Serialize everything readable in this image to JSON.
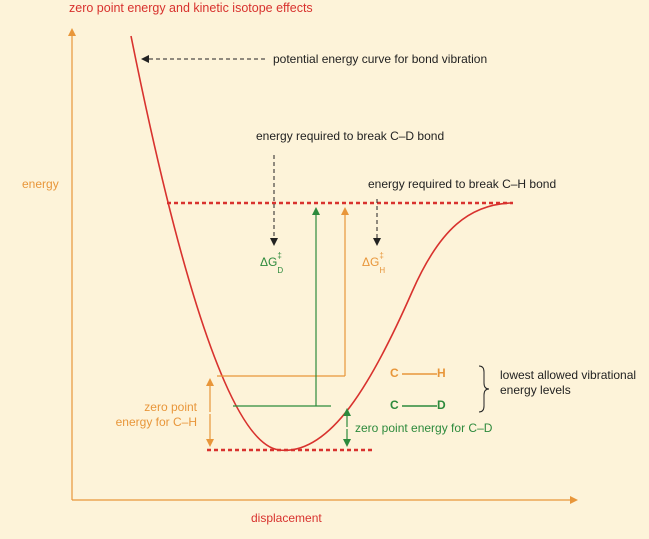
{
  "title": "zero point energy and kinetic isotope effects",
  "labels": {
    "potential_curve": "potential energy curve for bond vibration",
    "energy_cd": "energy required to break C–D bond",
    "energy_ch": "energy required to break C–H bond",
    "y_axis": "energy",
    "x_axis": "displacement",
    "zpe_ch_line1": "zero point",
    "zpe_ch_line2": "energy for C–H",
    "zpe_cd": "zero point energy for C–D",
    "lowest_levels_line1": "lowest allowed vibrational",
    "lowest_levels_line2": "energy levels",
    "dg_d": {
      "base": "ΔG",
      "sup": "‡",
      "sub": "D"
    },
    "dg_h": {
      "base": "ΔG",
      "sup": "‡",
      "sub": "H"
    }
  },
  "bonds": {
    "ch": {
      "left": "C",
      "right": "H"
    },
    "cd": {
      "left": "C",
      "right": "D"
    }
  },
  "colors": {
    "background": "#fdf3d9",
    "curve": "#d8322e",
    "axis_arrow": "#e8963a",
    "ch": "#e8963a",
    "cd": "#2d8a3c",
    "text": "#222222"
  }
}
